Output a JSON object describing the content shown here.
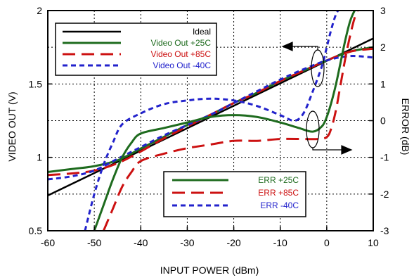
{
  "chart_data": {
    "type": "line",
    "xlabel": "INPUT POWER (dBm)",
    "ylabel": "VIDEO OUT (V)",
    "y2label": "ERROR (dB)",
    "xlim": [
      -60,
      10
    ],
    "ylim": [
      0.5,
      2.0
    ],
    "y2lim": [
      -3,
      3
    ],
    "x_ticks": [
      -60,
      -50,
      -40,
      -30,
      -20,
      -10,
      0,
      10
    ],
    "y_ticks": [
      {
        "value": 0.5,
        "label": "0.5"
      },
      {
        "value": 1.0,
        "label": "1"
      },
      {
        "value": 1.5,
        "label": "1.5"
      },
      {
        "value": 2.0,
        "label": "2"
      }
    ],
    "y2_ticks": [
      -3,
      -2,
      -1,
      0,
      1,
      2,
      3
    ],
    "grid": "dotted",
    "legend_top": [
      {
        "label": "Ideal",
        "color": "#000000",
        "style": "solid"
      },
      {
        "label": "Video Out +25C",
        "color": "#1e6b1e",
        "style": "solid"
      },
      {
        "label": "Video Out +85C",
        "color": "#cc1111",
        "style": "dashed"
      },
      {
        "label": "Video Out  -40C",
        "color": "#2222cc",
        "style": "short-dashed"
      }
    ],
    "legend_bottom": [
      {
        "label": "ERR +25C",
        "color": "#1e6b1e",
        "style": "solid"
      },
      {
        "label": "ERR +85C",
        "color": "#cc1111",
        "style": "dashed"
      },
      {
        "label": "ERR  -40C",
        "color": "#2222cc",
        "style": "short-dashed"
      }
    ],
    "series": [
      {
        "name": "Ideal",
        "axis": "left",
        "color": "#000000",
        "style": "solid",
        "x": [
          -60,
          10
        ],
        "y": [
          0.74,
          1.81
        ]
      },
      {
        "name": "Video Out +25C",
        "axis": "left",
        "color": "#1e6b1e",
        "style": "solid",
        "x": [
          -60,
          -55,
          -50,
          -45,
          -40,
          -35,
          -30,
          -25,
          -20,
          -15,
          -10,
          -5,
          0,
          5,
          10
        ],
        "y": [
          0.9,
          0.92,
          0.94,
          0.98,
          1.06,
          1.14,
          1.22,
          1.29,
          1.37,
          1.44,
          1.52,
          1.59,
          1.66,
          1.72,
          1.75
        ]
      },
      {
        "name": "Video Out +85C",
        "axis": "left",
        "color": "#cc1111",
        "style": "dashed",
        "x": [
          -60,
          -55,
          -50,
          -45,
          -40,
          -35,
          -30,
          -25,
          -20,
          -15,
          -10,
          -5,
          0,
          5,
          10
        ],
        "y": [
          0.88,
          0.89,
          0.91,
          0.96,
          1.04,
          1.13,
          1.21,
          1.29,
          1.37,
          1.44,
          1.52,
          1.59,
          1.66,
          1.72,
          1.74
        ]
      },
      {
        "name": "Video Out  -40C",
        "axis": "left",
        "color": "#2222cc",
        "style": "short-dashed",
        "x": [
          -60,
          -55,
          -50,
          -45,
          -40,
          -35,
          -30,
          -25,
          -20,
          -15,
          -10,
          -5,
          0,
          5,
          10
        ],
        "y": [
          0.85,
          0.87,
          0.91,
          0.99,
          1.07,
          1.15,
          1.22,
          1.29,
          1.37,
          1.45,
          1.53,
          1.6,
          1.66,
          1.69,
          1.68
        ]
      },
      {
        "name": "ERR +25C",
        "axis": "right",
        "color": "#1e6b1e",
        "style": "solid",
        "x": [
          -50,
          -48,
          -46,
          -44,
          -42,
          -40,
          -35,
          -30,
          -25,
          -20,
          -15,
          -10,
          -6,
          -3,
          -1,
          0,
          1,
          2,
          3,
          4,
          5,
          6,
          7
        ],
        "y": [
          -3.0,
          -2.3,
          -1.6,
          -1.0,
          -0.6,
          -0.35,
          -0.2,
          -0.05,
          0.1,
          0.15,
          0.1,
          -0.05,
          -0.2,
          -0.3,
          -0.15,
          0.1,
          0.5,
          1.0,
          1.6,
          2.2,
          2.7,
          3.0,
          3.2
        ]
      },
      {
        "name": "ERR +85C",
        "axis": "right",
        "color": "#cc1111",
        "style": "dashed",
        "x": [
          -48,
          -46,
          -44,
          -42,
          -40,
          -35,
          -30,
          -25,
          -20,
          -15,
          -10,
          -5,
          -2,
          0,
          1,
          2,
          3,
          4,
          5,
          6,
          7
        ],
        "y": [
          -3.0,
          -2.4,
          -1.8,
          -1.4,
          -1.1,
          -0.9,
          -0.75,
          -0.65,
          -0.55,
          -0.55,
          -0.5,
          -0.5,
          -0.5,
          -0.45,
          -0.2,
          0.3,
          1.0,
          1.7,
          2.3,
          2.8,
          3.1
        ]
      },
      {
        "name": "ERR  -40C",
        "axis": "right",
        "color": "#2222cc",
        "style": "short-dashed",
        "x": [
          -52,
          -50,
          -48,
          -46,
          -44,
          -40,
          -35,
          -30,
          -25,
          -20,
          -15,
          -10,
          -7,
          -5,
          -3,
          -1,
          0,
          1,
          2,
          3
        ],
        "y": [
          -3.0,
          -2.0,
          -1.2,
          -0.6,
          -0.1,
          0.2,
          0.45,
          0.55,
          0.6,
          0.55,
          0.4,
          0.15,
          0.0,
          0.2,
          0.8,
          1.5,
          2.0,
          2.5,
          2.9,
          3.1
        ]
      }
    ]
  }
}
